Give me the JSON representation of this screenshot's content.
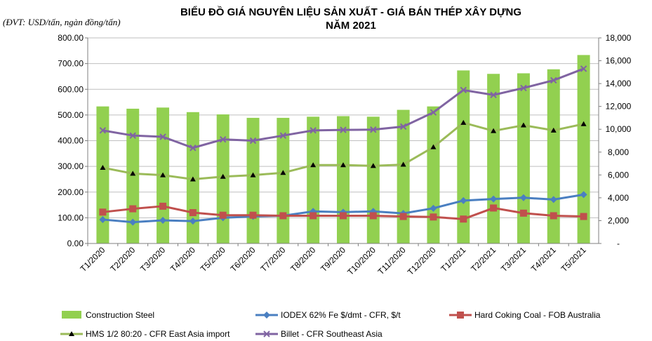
{
  "chart_data": {
    "type": "bar+line",
    "title_line1": "BIỂU ĐỒ GIÁ NGUYÊN LIỆU SẢN XUẤT - GIÁ BÁN THÉP XÂY DỰNG",
    "title_line2": "NĂM 2021",
    "unit_label": "(ĐVT: USD/tấn, ngàn đồng/tấn)",
    "categories": [
      "T1/2020",
      "T2/2020",
      "T3/2020",
      "T4/2020",
      "T5/2020",
      "T6/2020",
      "T7/2020",
      "T8/2020",
      "T9/2020",
      "T10/2020",
      "T11/2020",
      "T12/2020",
      "T1/2021",
      "T2/2021",
      "T3/2021",
      "T4/2021",
      "T5/2021"
    ],
    "left_axis": {
      "min": 0,
      "max": 800,
      "step": 100,
      "ticks": [
        "0.00",
        "100.00",
        "200.00",
        "300.00",
        "400.00",
        "500.00",
        "600.00",
        "700.00",
        "800.00"
      ]
    },
    "right_axis": {
      "min": 0,
      "max": 18000,
      "step": 2000,
      "ticks": [
        "-",
        "2,000",
        "4,000",
        "6,000",
        "8,000",
        "10,000",
        "12,000",
        "14,000",
        "16,000",
        "18,000"
      ]
    },
    "series": [
      {
        "name": "Construction Steel",
        "kind": "bar",
        "axis": "right",
        "color": "#92d050",
        "values": [
          12000,
          11800,
          11900,
          11500,
          11300,
          11000,
          11000,
          11100,
          11150,
          11100,
          11700,
          12000,
          15150,
          14850,
          14900,
          15250,
          16500
        ]
      },
      {
        "name": "IODEX 62% Fe $/dmt - CFR, $/t",
        "kind": "line",
        "axis": "left",
        "color": "#4a7fc1",
        "marker": "diamond",
        "values": [
          93,
          83,
          90,
          87,
          100,
          105,
          108,
          125,
          122,
          125,
          117,
          137,
          167,
          173,
          178,
          171,
          190
        ]
      },
      {
        "name": "Hard Coking Coal - FOB Australia",
        "kind": "line",
        "axis": "left",
        "color": "#c0504d",
        "marker": "square",
        "values": [
          122,
          135,
          145,
          120,
          110,
          110,
          108,
          108,
          108,
          108,
          105,
          103,
          95,
          138,
          118,
          108,
          105
        ]
      },
      {
        "name": "HMS 1/2 80:20 - CFR East Asia import",
        "kind": "line",
        "axis": "left",
        "color": "#9bbb59",
        "marker": "triangle",
        "values": [
          295,
          272,
          266,
          250,
          260,
          266,
          275,
          305,
          305,
          302,
          307,
          375,
          470,
          438,
          460,
          440,
          465
        ]
      },
      {
        "name": "Billet - CFR Southeast Asia",
        "kind": "line",
        "axis": "left",
        "color": "#8064a2",
        "marker": "x",
        "values": [
          440,
          420,
          415,
          372,
          405,
          400,
          420,
          440,
          442,
          443,
          455,
          510,
          597,
          578,
          605,
          635,
          680
        ]
      }
    ],
    "legend_position": "bottom",
    "grid": true
  }
}
